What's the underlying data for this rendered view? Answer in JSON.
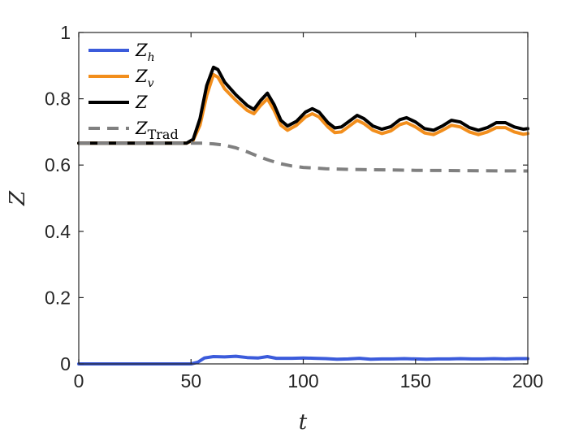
{
  "chart_data": {
    "type": "line",
    "xlabel": "t",
    "ylabel": "Z",
    "xlim": [
      0,
      200
    ],
    "ylim": [
      0,
      1
    ],
    "xticks": [
      "0",
      "50",
      "100",
      "150",
      "200"
    ],
    "yticks": [
      "0",
      "0.2",
      "0.4",
      "0.6",
      "0.8",
      "1"
    ],
    "grid": false,
    "legend_position": "top-left",
    "series": [
      {
        "name": "Z_h",
        "legend_main": "Z",
        "legend_sub": "h",
        "color": "#3b5bdb",
        "style": "solid",
        "points": [
          [
            0,
            0
          ],
          [
            50,
            0
          ],
          [
            53,
            0.005
          ],
          [
            56,
            0.018
          ],
          [
            60,
            0.022
          ],
          [
            65,
            0.021
          ],
          [
            70,
            0.023
          ],
          [
            75,
            0.019
          ],
          [
            80,
            0.018
          ],
          [
            84,
            0.022
          ],
          [
            88,
            0.017
          ],
          [
            95,
            0.017
          ],
          [
            100,
            0.018
          ],
          [
            105,
            0.017
          ],
          [
            110,
            0.016
          ],
          [
            115,
            0.014
          ],
          [
            120,
            0.015
          ],
          [
            125,
            0.017
          ],
          [
            130,
            0.014
          ],
          [
            135,
            0.015
          ],
          [
            140,
            0.015
          ],
          [
            145,
            0.016
          ],
          [
            150,
            0.015
          ],
          [
            155,
            0.014
          ],
          [
            160,
            0.015
          ],
          [
            165,
            0.015
          ],
          [
            170,
            0.016
          ],
          [
            175,
            0.015
          ],
          [
            180,
            0.015
          ],
          [
            185,
            0.016
          ],
          [
            190,
            0.015
          ],
          [
            195,
            0.016
          ],
          [
            200,
            0.016
          ]
        ]
      },
      {
        "name": "Z_v",
        "legend_main": "Z",
        "legend_sub": "v",
        "color": "#f28e1c",
        "style": "solid",
        "points": [
          [
            0,
            0.666
          ],
          [
            48,
            0.666
          ],
          [
            51,
            0.675
          ],
          [
            54,
            0.72
          ],
          [
            57,
            0.81
          ],
          [
            60,
            0.873
          ],
          [
            62,
            0.865
          ],
          [
            65,
            0.83
          ],
          [
            70,
            0.795
          ],
          [
            75,
            0.765
          ],
          [
            78,
            0.755
          ],
          [
            81,
            0.78
          ],
          [
            84,
            0.8
          ],
          [
            87,
            0.765
          ],
          [
            90,
            0.72
          ],
          [
            93,
            0.705
          ],
          [
            97,
            0.72
          ],
          [
            101,
            0.745
          ],
          [
            104,
            0.755
          ],
          [
            107,
            0.745
          ],
          [
            111,
            0.715
          ],
          [
            114,
            0.698
          ],
          [
            117,
            0.7
          ],
          [
            121,
            0.72
          ],
          [
            124,
            0.735
          ],
          [
            127,
            0.725
          ],
          [
            131,
            0.705
          ],
          [
            135,
            0.695
          ],
          [
            139,
            0.703
          ],
          [
            143,
            0.722
          ],
          [
            146,
            0.728
          ],
          [
            150,
            0.715
          ],
          [
            154,
            0.697
          ],
          [
            158,
            0.692
          ],
          [
            162,
            0.705
          ],
          [
            166,
            0.72
          ],
          [
            170,
            0.715
          ],
          [
            174,
            0.7
          ],
          [
            178,
            0.692
          ],
          [
            182,
            0.7
          ],
          [
            186,
            0.713
          ],
          [
            190,
            0.713
          ],
          [
            194,
            0.7
          ],
          [
            198,
            0.693
          ],
          [
            200,
            0.695
          ]
        ]
      },
      {
        "name": "Z",
        "legend_main": "Z",
        "legend_sub": "",
        "color": "#000000",
        "style": "solid",
        "points": [
          [
            0,
            0.666
          ],
          [
            48,
            0.666
          ],
          [
            51,
            0.678
          ],
          [
            54,
            0.74
          ],
          [
            57,
            0.84
          ],
          [
            60,
            0.895
          ],
          [
            62,
            0.888
          ],
          [
            65,
            0.85
          ],
          [
            70,
            0.812
          ],
          [
            75,
            0.78
          ],
          [
            78,
            0.768
          ],
          [
            81,
            0.795
          ],
          [
            84,
            0.817
          ],
          [
            87,
            0.782
          ],
          [
            90,
            0.735
          ],
          [
            93,
            0.718
          ],
          [
            97,
            0.732
          ],
          [
            101,
            0.76
          ],
          [
            104,
            0.77
          ],
          [
            107,
            0.76
          ],
          [
            111,
            0.728
          ],
          [
            114,
            0.712
          ],
          [
            117,
            0.715
          ],
          [
            121,
            0.735
          ],
          [
            124,
            0.75
          ],
          [
            127,
            0.74
          ],
          [
            131,
            0.718
          ],
          [
            135,
            0.708
          ],
          [
            139,
            0.716
          ],
          [
            143,
            0.737
          ],
          [
            146,
            0.743
          ],
          [
            150,
            0.73
          ],
          [
            154,
            0.71
          ],
          [
            158,
            0.705
          ],
          [
            162,
            0.718
          ],
          [
            166,
            0.735
          ],
          [
            170,
            0.73
          ],
          [
            174,
            0.713
          ],
          [
            178,
            0.705
          ],
          [
            182,
            0.713
          ],
          [
            186,
            0.728
          ],
          [
            190,
            0.728
          ],
          [
            194,
            0.715
          ],
          [
            198,
            0.708
          ],
          [
            200,
            0.71
          ]
        ]
      },
      {
        "name": "Z_Trad",
        "legend_main": "Z",
        "legend_sub": "Trad",
        "color": "#808080",
        "style": "dashed",
        "points": [
          [
            0,
            0.666
          ],
          [
            55,
            0.666
          ],
          [
            60,
            0.664
          ],
          [
            65,
            0.66
          ],
          [
            70,
            0.652
          ],
          [
            75,
            0.64
          ],
          [
            80,
            0.626
          ],
          [
            85,
            0.614
          ],
          [
            90,
            0.604
          ],
          [
            95,
            0.597
          ],
          [
            100,
            0.593
          ],
          [
            110,
            0.589
          ],
          [
            120,
            0.587
          ],
          [
            130,
            0.586
          ],
          [
            140,
            0.585
          ],
          [
            150,
            0.584
          ],
          [
            170,
            0.583
          ],
          [
            200,
            0.582
          ]
        ]
      }
    ]
  }
}
